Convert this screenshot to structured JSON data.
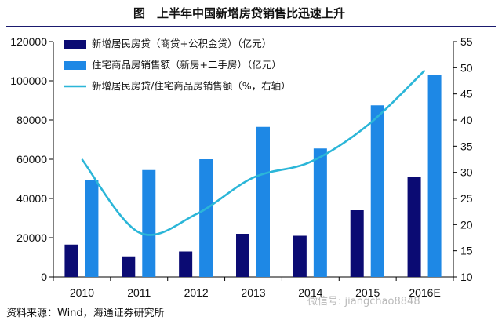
{
  "figure": {
    "title": "图　上半年中国新增房贷销售比迅速上升",
    "source": "资料来源：Wind，海通证券研究所",
    "watermark": "微信号: jiangchao8848"
  },
  "colors": {
    "loan_bar": "#0b0b73",
    "sales_bar": "#1e88e5",
    "ratio_line": "#2bb6d8",
    "axis": "#000000",
    "title_rule": "#1a1a6e"
  },
  "chart_data": {
    "type": "bar",
    "categories": [
      "2010",
      "2011",
      "2012",
      "2013",
      "2014",
      "2015",
      "2016E"
    ],
    "series": [
      {
        "name": "新增居民房贷（商贷+公积金贷）（亿元）",
        "type": "bar",
        "axis": "left",
        "values": [
          16500,
          10500,
          13000,
          22000,
          21000,
          34000,
          51000
        ]
      },
      {
        "name": "住宅商品房销售额（新房+二手房）（亿元）",
        "type": "bar",
        "axis": "left",
        "values": [
          49500,
          54500,
          60000,
          76500,
          65500,
          87500,
          103000
        ]
      },
      {
        "name": "新增居民房贷/住宅商品房销售额（%，右轴）",
        "type": "line",
        "axis": "right",
        "values": [
          32.5,
          18.5,
          22,
          29,
          32,
          39,
          49.5
        ]
      }
    ],
    "y_left": {
      "min": 0,
      "max": 120000,
      "ticks": [
        0,
        20000,
        40000,
        60000,
        80000,
        100000,
        120000
      ]
    },
    "y_right": {
      "min": 10,
      "max": 55,
      "ticks": [
        10,
        15,
        20,
        25,
        30,
        35,
        40,
        45,
        50,
        55
      ]
    },
    "legend_position": "top-left",
    "grid": false
  }
}
